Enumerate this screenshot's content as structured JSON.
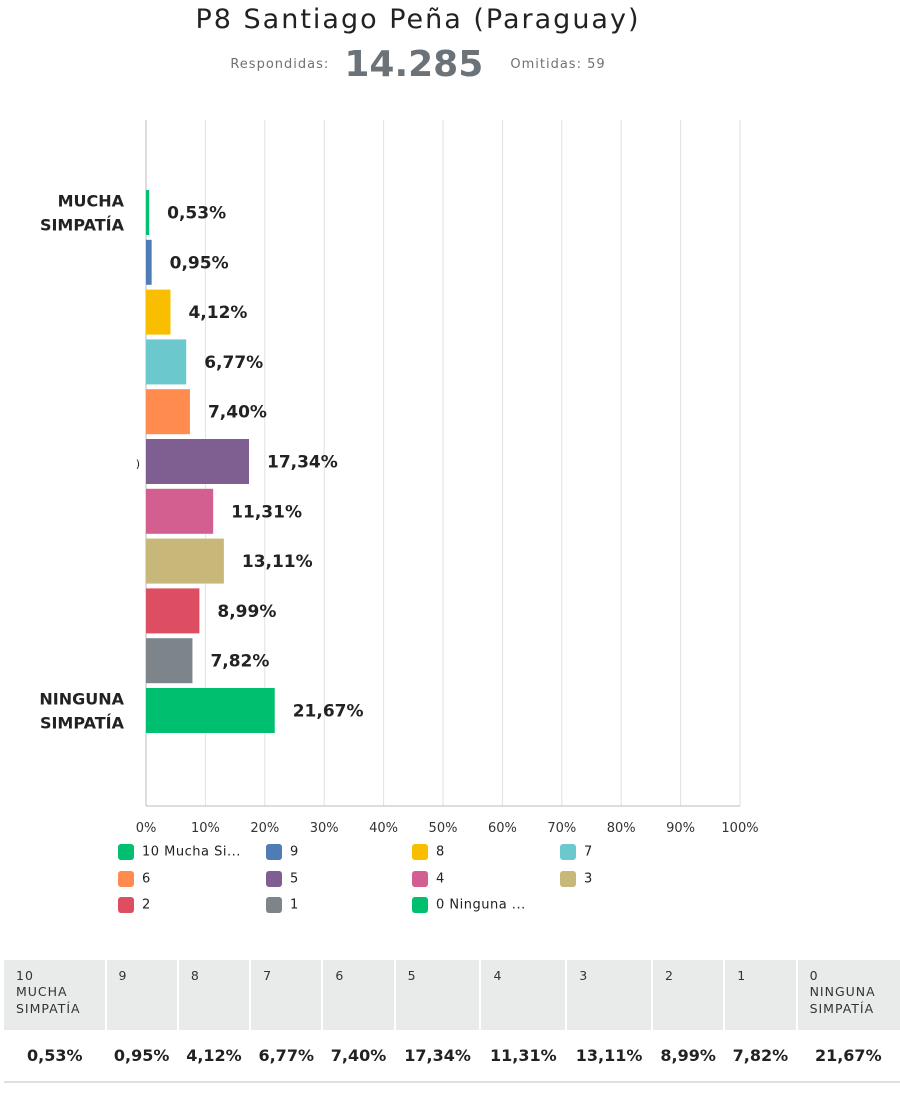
{
  "header": {
    "title": "P8 Santiago Peña (Paraguay)",
    "answered_label": "Respondidas:",
    "answered_value": "14.285",
    "skipped_label": "Omitidas: 59"
  },
  "chart_data": {
    "type": "bar",
    "orientation": "horizontal",
    "categories": [
      "10 Mucha Simpatía",
      "9",
      "8",
      "7",
      "6",
      "5",
      "4",
      "3",
      "2",
      "1",
      "0 Ninguna Simpatía"
    ],
    "values": [
      0.53,
      0.95,
      4.12,
      6.77,
      7.4,
      17.34,
      11.31,
      13.11,
      8.99,
      7.82,
      21.67
    ],
    "value_labels": [
      "0,53%",
      "0,95%",
      "4,12%",
      "6,77%",
      "7,40%",
      "17,34%",
      "11,31%",
      "13,11%",
      "8,99%",
      "7,82%",
      "21,67%"
    ],
    "colors": [
      "#00bf6f",
      "#507cb6",
      "#f9be00",
      "#6bc8cd",
      "#ff8b4f",
      "#7f5f91",
      "#d25f90",
      "#c7b879",
      "#de4e63",
      "#7d858b",
      "#00bf6f"
    ],
    "y_tick_labels": [
      {
        "index": 0,
        "lines": [
          "MUCHA",
          "SIMPATÍA"
        ]
      },
      {
        "index": 5,
        "lines": [
          ")"
        ]
      },
      {
        "index": 10,
        "lines": [
          "NINGUNA",
          "SIMPATÍA"
        ]
      }
    ],
    "xlim": [
      0,
      100
    ],
    "x_ticks": [
      "0%",
      "10%",
      "20%",
      "30%",
      "40%",
      "50%",
      "60%",
      "70%",
      "80%",
      "90%",
      "100%"
    ],
    "grid": true,
    "legend_position": "bottom"
  },
  "legend": [
    {
      "label": "10 Mucha Si...",
      "color": "#00bf6f"
    },
    {
      "label": "9",
      "color": "#507cb6"
    },
    {
      "label": "8",
      "color": "#f9be00"
    },
    {
      "label": "7",
      "color": "#6bc8cd"
    },
    {
      "label": "6",
      "color": "#ff8b4f"
    },
    {
      "label": "5",
      "color": "#7f5f91"
    },
    {
      "label": "4",
      "color": "#d25f90"
    },
    {
      "label": "3",
      "color": "#c7b879"
    },
    {
      "label": "2",
      "color": "#de4e63"
    },
    {
      "label": "1",
      "color": "#7d858b"
    },
    {
      "label": "0 Ninguna ...",
      "color": "#00bf6f"
    }
  ],
  "table": {
    "headers": [
      [
        "10",
        "MUCHA",
        "SIMPATÍA"
      ],
      [
        "9"
      ],
      [
        "8"
      ],
      [
        "7"
      ],
      [
        "6"
      ],
      [
        "5"
      ],
      [
        "4"
      ],
      [
        "3"
      ],
      [
        "2"
      ],
      [
        "1"
      ],
      [
        "0",
        "NINGUNA",
        "SIMPATÍA"
      ]
    ],
    "values": [
      "0,53%",
      "0,95%",
      "4,12%",
      "6,77%",
      "7,40%",
      "17,34%",
      "11,31%",
      "13,11%",
      "8,99%",
      "7,82%",
      "21,67%"
    ]
  }
}
